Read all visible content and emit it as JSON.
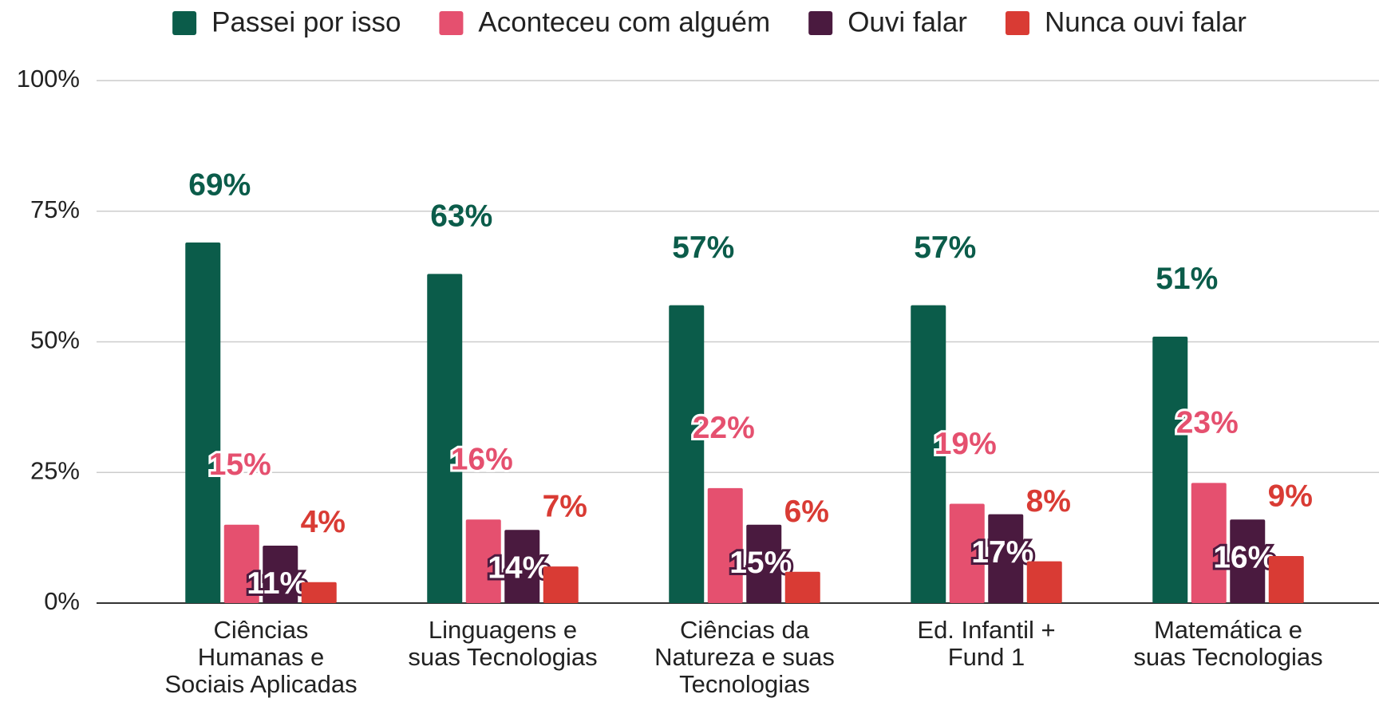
{
  "chart_data": {
    "type": "bar",
    "categories": [
      [
        "Ciências",
        "Humanas e",
        "Sociais Aplicadas"
      ],
      [
        "Linguagens e",
        "suas Tecnologias"
      ],
      [
        "Ciências da",
        "Natureza e suas",
        "Tecnologias"
      ],
      [
        "Ed. Infantil  +",
        "Fund 1"
      ],
      [
        "Matemática e",
        "suas Tecnologias"
      ]
    ],
    "series": [
      {
        "name": "Passei por isso",
        "color": "#0b5c4a",
        "values": [
          69,
          63,
          57,
          57,
          51
        ],
        "value_labels": [
          "69%",
          "63%",
          "57%",
          "57%",
          "51%"
        ]
      },
      {
        "name": "Aconteceu com alguém",
        "color": "#e5506f",
        "values": [
          15,
          16,
          22,
          19,
          23
        ],
        "value_labels": [
          "15%",
          "16%",
          "22%",
          "19%",
          "23%"
        ]
      },
      {
        "name": "Ouvi falar",
        "color": "#4a1a3f",
        "values": [
          11,
          14,
          15,
          17,
          16
        ],
        "value_labels": [
          "11%",
          "14%",
          "15%",
          "17%",
          "16%"
        ]
      },
      {
        "name": "Nunca ouvi falar",
        "color": "#d93b34",
        "values": [
          4,
          7,
          6,
          8,
          9
        ],
        "value_labels": [
          "4%",
          "7%",
          "6%",
          "8%",
          "9%"
        ]
      }
    ],
    "ylim": [
      0,
      100
    ],
    "yticks": [
      {
        "value": 0,
        "label": "0%"
      },
      {
        "value": 25,
        "label": "25%"
      },
      {
        "value": 50,
        "label": "50%"
      },
      {
        "value": 75,
        "label": "75%"
      },
      {
        "value": 100,
        "label": "100%"
      }
    ],
    "grid": true,
    "legend": "top"
  }
}
